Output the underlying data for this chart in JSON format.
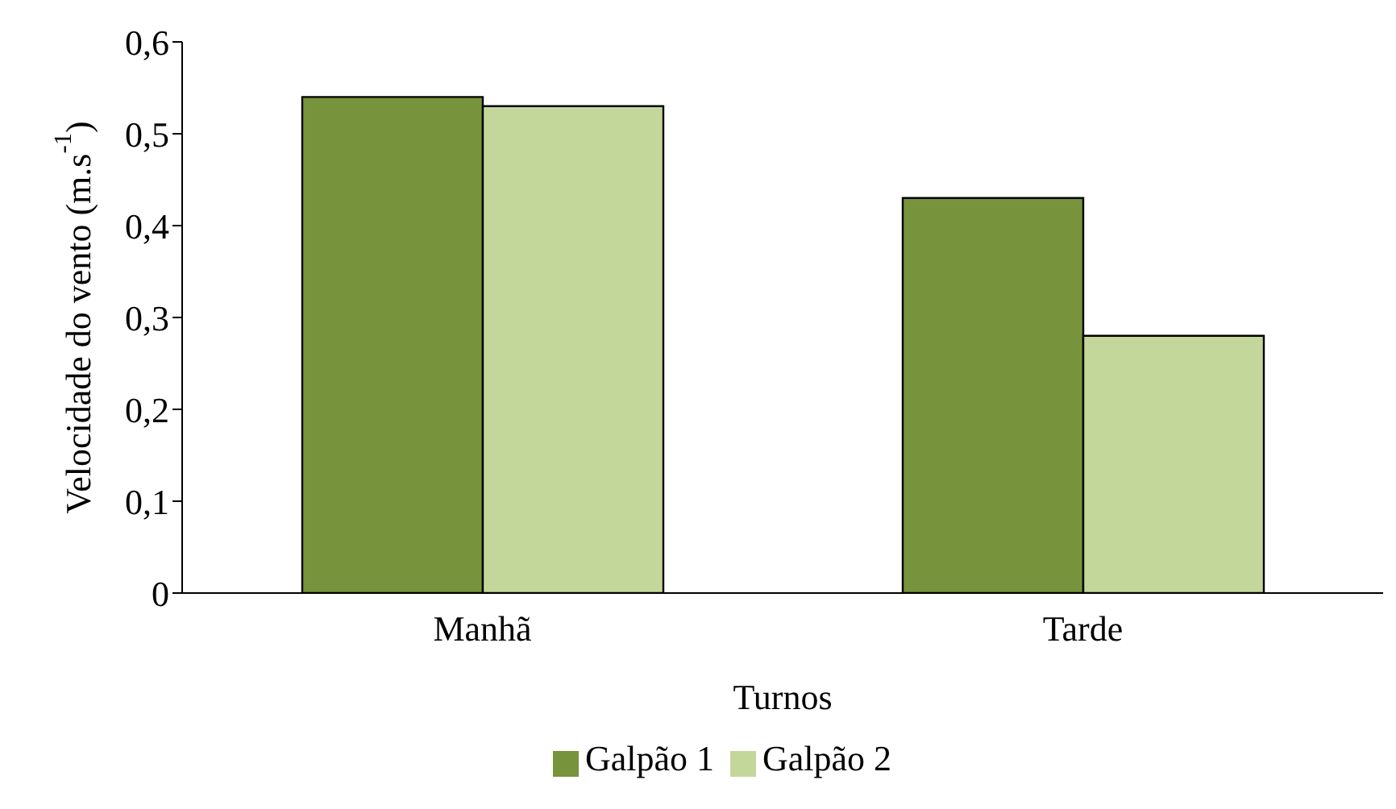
{
  "chart_data": {
    "type": "bar",
    "xlabel": "Turnos",
    "ylabel": "Velocidade do vento (m.s$^{-1}$)",
    "categories": [
      "Manhã",
      "Tarde"
    ],
    "series": [
      {
        "name": "Galpão 1",
        "color": "#77933c",
        "values": [
          0.54,
          0.43
        ]
      },
      {
        "name": "Galpão 2",
        "color": "#c4d79b",
        "values": [
          0.53,
          0.28
        ]
      }
    ],
    "ylim": [
      0,
      0.6
    ],
    "yticks": [
      0,
      {
        "value": 0.1,
        "label": "0,1"
      },
      {
        "value": 0.2,
        "label": "0,2"
      },
      {
        "value": 0.3,
        "label": "0,3"
      },
      {
        "value": 0.4,
        "label": "0,4"
      },
      {
        "value": 0.5,
        "label": "0,5"
      },
      {
        "value": 0.6,
        "label": "0,6"
      }
    ],
    "grid": false,
    "legend": "bottom"
  }
}
